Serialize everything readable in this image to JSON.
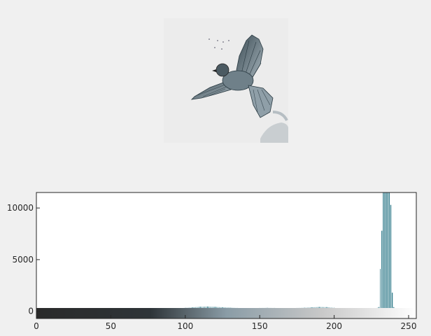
{
  "window": {
    "background": "#f0f0f0"
  },
  "image_panel": {
    "subject": "grayscale photo of a flying sparrow",
    "background": "#ececec"
  },
  "chart_data": {
    "type": "bar",
    "title": "",
    "xlabel": "",
    "ylabel": "",
    "xlim": [
      0,
      255
    ],
    "ylim": [
      -700,
      11500
    ],
    "xticks": [
      0,
      50,
      100,
      150,
      200,
      250
    ],
    "yticks": [
      0,
      5000,
      10000
    ],
    "grid": false,
    "bar_color": "#2f7a8a",
    "colorbar": {
      "type": "gray-intensity",
      "range": [
        0,
        255
      ]
    },
    "x": [
      70,
      75,
      80,
      85,
      90,
      95,
      100,
      105,
      110,
      115,
      120,
      125,
      130,
      135,
      140,
      145,
      150,
      155,
      160,
      165,
      170,
      175,
      180,
      185,
      190,
      195,
      200,
      205,
      210,
      215,
      220,
      225,
      230,
      232,
      233,
      234,
      235,
      236,
      237,
      238,
      239,
      240
    ],
    "values": [
      40,
      90,
      140,
      180,
      220,
      280,
      330,
      380,
      440,
      460,
      430,
      390,
      350,
      320,
      300,
      310,
      320,
      330,
      320,
      310,
      300,
      320,
      340,
      380,
      420,
      400,
      330,
      260,
      200,
      150,
      110,
      100,
      400,
      7800,
      11500,
      11500,
      11500,
      11500,
      11500,
      10300,
      1800,
      400
    ]
  }
}
